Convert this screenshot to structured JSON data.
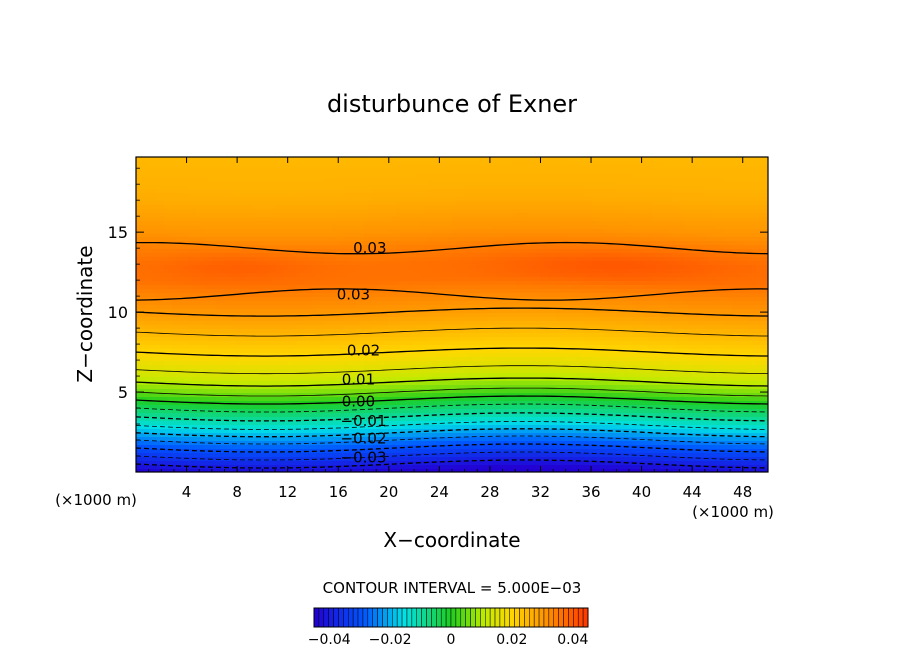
{
  "chart_data": {
    "type": "heatmap",
    "title": "disturbunce of Exner",
    "xlabel": "X−coordinate",
    "ylabel": "Z−coordinate",
    "x_unit_left": "(×1000 m)",
    "x_unit_right": "(×1000 m)",
    "xlim": [
      0,
      50
    ],
    "ylim": [
      0,
      19.7
    ],
    "x_ticks": [
      4,
      8,
      12,
      16,
      20,
      24,
      28,
      32,
      36,
      40,
      44,
      48
    ],
    "y_ticks": [
      5,
      10,
      15
    ],
    "contour_interval_text": "CONTOUR INTERVAL =  5.000E−03",
    "value_range": [
      -0.045,
      0.045
    ],
    "colorbar": {
      "ticks": [
        "−0.04",
        "−0.02",
        "0",
        "0.02",
        "0.04"
      ],
      "tick_values": [
        -0.04,
        -0.02,
        0,
        0.02,
        0.04
      ]
    },
    "contour_labels": [
      {
        "text": "0.03",
        "x": 18.5,
        "z": 14.0
      },
      {
        "text": "0.03",
        "x": 17.2,
        "z": 11.1
      },
      {
        "text": "0.02",
        "x": 18.0,
        "z": 7.6
      },
      {
        "text": "0.01",
        "x": 17.6,
        "z": 5.8
      },
      {
        "text": "0.00",
        "x": 17.6,
        "z": 4.4
      },
      {
        "text": "−0.01",
        "x": 18.0,
        "z": 3.2
      },
      {
        "text": "−0.02",
        "x": 18.0,
        "z": 2.1
      },
      {
        "text": "−0.03",
        "x": 18.0,
        "z": 0.9
      }
    ],
    "field_profile": {
      "z": [
        0,
        1,
        2,
        3,
        4,
        5,
        6,
        7,
        8,
        9,
        10,
        11,
        12,
        13,
        14,
        15,
        16,
        17,
        18,
        19.7
      ],
      "value": [
        -0.045,
        -0.035,
        -0.025,
        -0.014,
        -0.005,
        0.005,
        0.013,
        0.018,
        0.022,
        0.026,
        0.03,
        0.033,
        0.036,
        0.036,
        0.034,
        0.031,
        0.029,
        0.027,
        0.026,
        0.025
      ]
    }
  }
}
